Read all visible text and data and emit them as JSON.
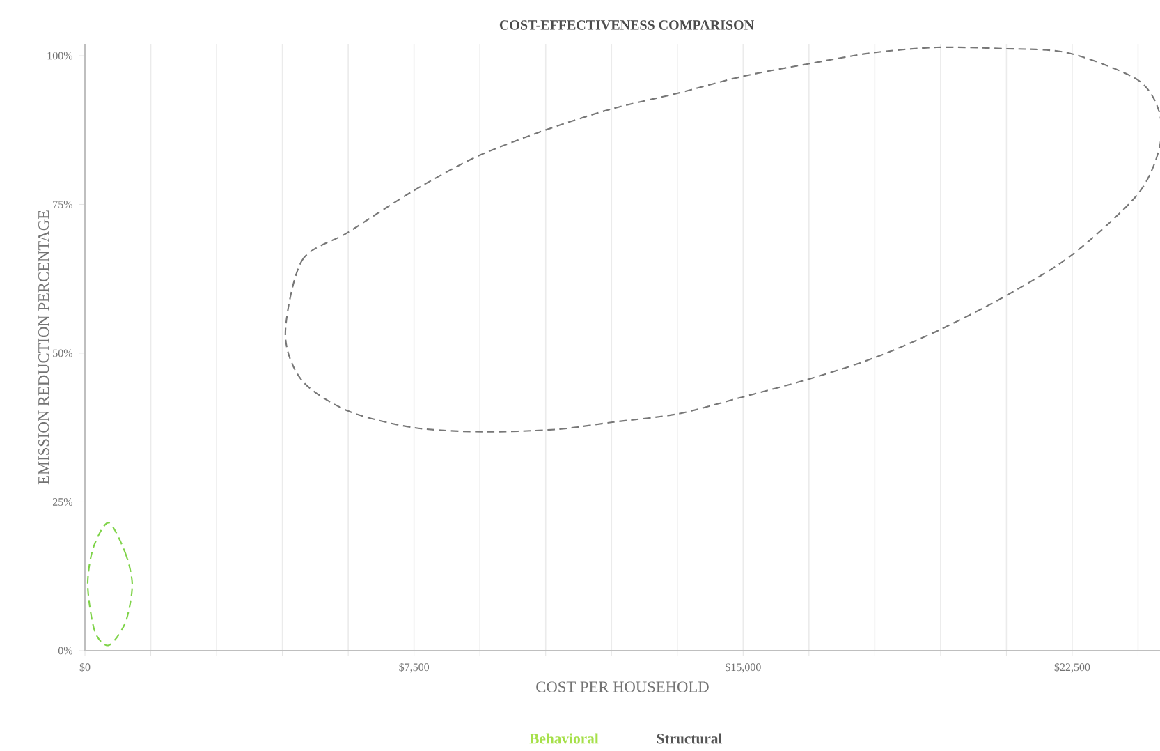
{
  "chart_data": {
    "type": "line",
    "title": "COST-EFFECTIVENESS COMPARISON",
    "xlabel": "COST PER HOUSEHOLD",
    "ylabel": "EMISSION REDUCTION PERCENTAGE",
    "xlim": [
      0,
      24500
    ],
    "xticks": [
      {
        "value": 0,
        "label": "$0"
      },
      {
        "value": 1500,
        "label": null
      },
      {
        "value": 3000,
        "label": null
      },
      {
        "value": 4500,
        "label": null
      },
      {
        "value": 6000,
        "label": null
      },
      {
        "value": 7500,
        "label": "$7,500"
      },
      {
        "value": 9000,
        "label": null
      },
      {
        "value": 10500,
        "label": null
      },
      {
        "value": 12000,
        "label": null
      },
      {
        "value": 13500,
        "label": null
      },
      {
        "value": 15000,
        "label": "$15,000"
      },
      {
        "value": 16500,
        "label": null
      },
      {
        "value": 18000,
        "label": null
      },
      {
        "value": 19500,
        "label": null
      },
      {
        "value": 21000,
        "label": null
      },
      {
        "value": 22500,
        "label": "$22,500"
      },
      {
        "value": 24000,
        "label": null
      }
    ],
    "ylim": [
      0,
      102
    ],
    "yticks": [
      {
        "value": 0,
        "label": "0%"
      },
      {
        "value": 25,
        "label": "25%"
      },
      {
        "value": 50,
        "label": "50%"
      },
      {
        "value": 75,
        "label": "75%"
      },
      {
        "value": 100,
        "label": "100%"
      }
    ],
    "grid": "x",
    "annotations": [
      "Behavioral",
      "Structural"
    ]
  }
}
